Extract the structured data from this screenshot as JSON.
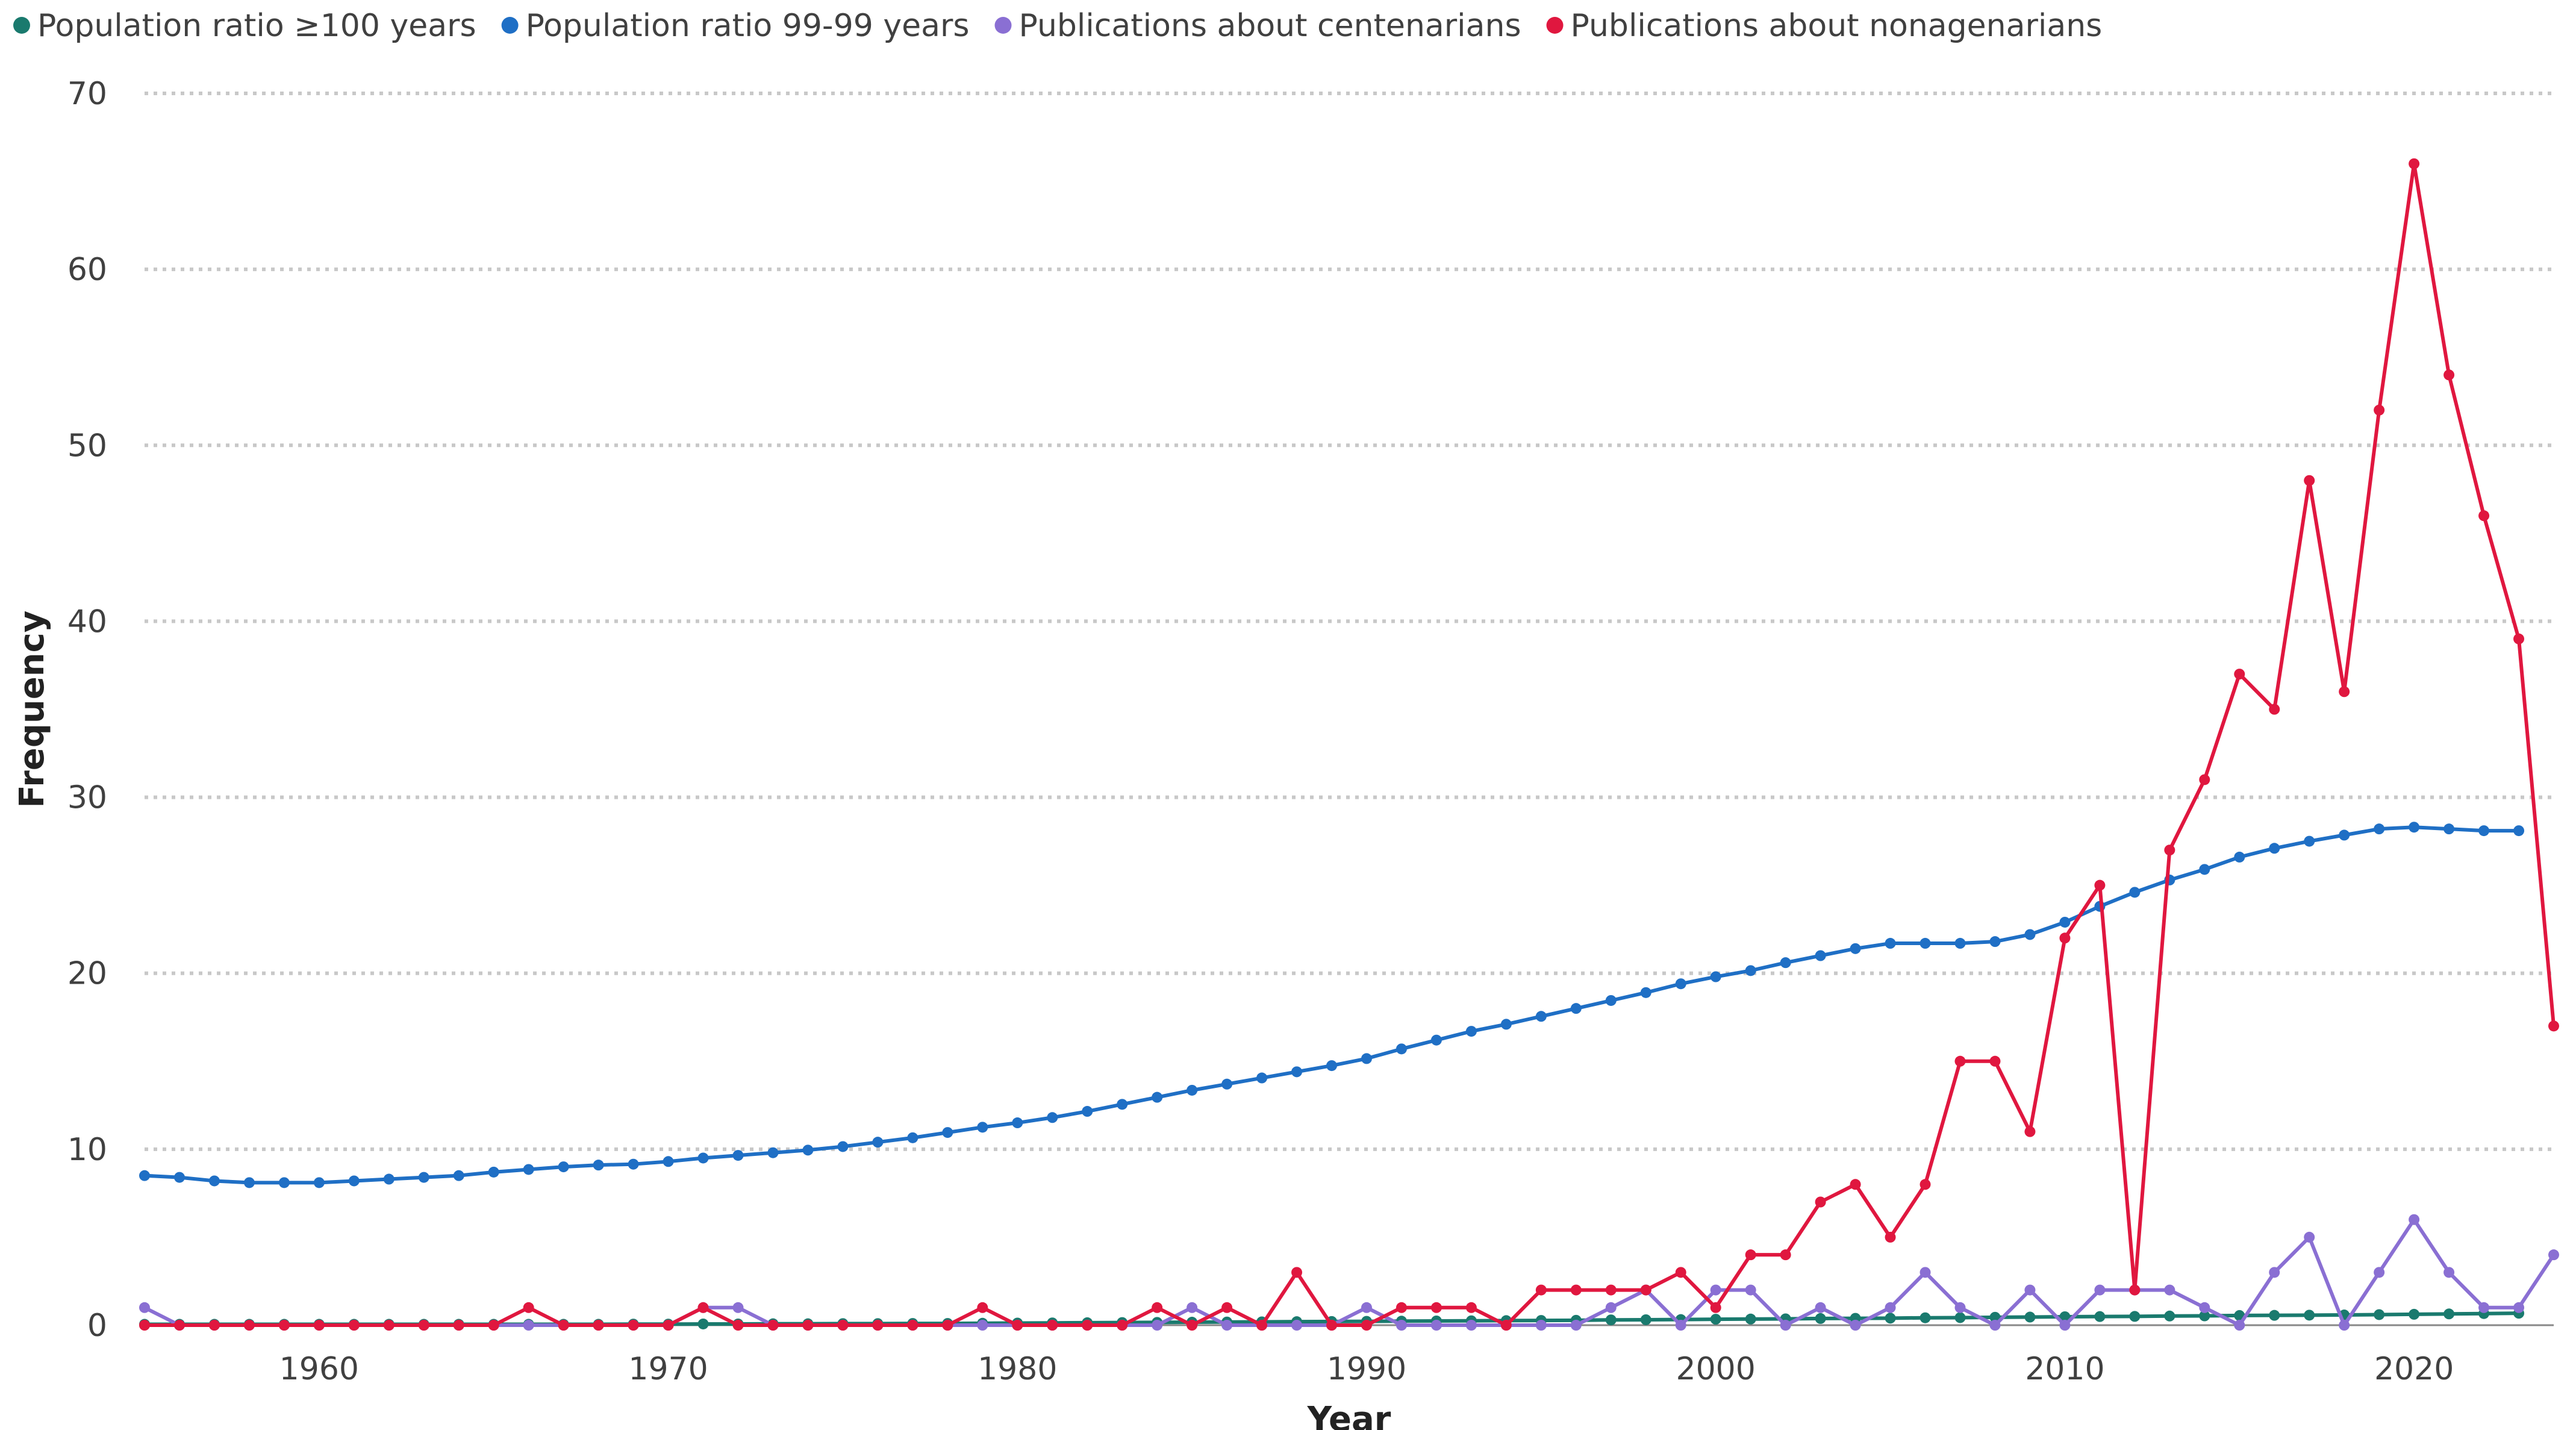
{
  "chart_data": {
    "type": "line",
    "title": "",
    "xlabel": "Year",
    "ylabel": "Frequency",
    "xlim": [
      1955,
      2024
    ],
    "ylim": [
      0,
      70
    ],
    "yticks": [
      0,
      10,
      20,
      30,
      40,
      50,
      60,
      70
    ],
    "xticks": [
      1960,
      1970,
      1980,
      1990,
      2000,
      2010,
      2020
    ],
    "grid": true,
    "legend_position": "top-left",
    "series": [
      {
        "name": "Population ratio ≥100 years",
        "color": "#1a7a6e",
        "x": [
          1955,
          1956,
          1957,
          1958,
          1959,
          1960,
          1961,
          1962,
          1963,
          1964,
          1965,
          1966,
          1967,
          1968,
          1969,
          1970,
          1971,
          1972,
          1973,
          1974,
          1975,
          1976,
          1977,
          1978,
          1979,
          1980,
          1981,
          1982,
          1983,
          1984,
          1985,
          1986,
          1987,
          1988,
          1989,
          1990,
          1991,
          1992,
          1993,
          1994,
          1995,
          1996,
          1997,
          1998,
          1999,
          2000,
          2001,
          2002,
          2003,
          2004,
          2005,
          2006,
          2007,
          2008,
          2009,
          2010,
          2011,
          2012,
          2013,
          2014,
          2015,
          2016,
          2017,
          2018,
          2019,
          2020,
          2021,
          2022,
          2023
        ],
        "values": [
          0.05,
          0.05,
          0.05,
          0.05,
          0.05,
          0.05,
          0.05,
          0.05,
          0.05,
          0.05,
          0.05,
          0.05,
          0.05,
          0.05,
          0.06,
          0.06,
          0.07,
          0.07,
          0.08,
          0.08,
          0.09,
          0.09,
          0.1,
          0.1,
          0.11,
          0.12,
          0.13,
          0.14,
          0.15,
          0.16,
          0.17,
          0.18,
          0.19,
          0.2,
          0.21,
          0.22,
          0.23,
          0.24,
          0.25,
          0.26,
          0.27,
          0.28,
          0.3,
          0.31,
          0.32,
          0.34,
          0.35,
          0.36,
          0.38,
          0.39,
          0.4,
          0.42,
          0.43,
          0.45,
          0.46,
          0.48,
          0.49,
          0.5,
          0.52,
          0.53,
          0.55,
          0.56,
          0.57,
          0.58,
          0.6,
          0.62,
          0.64,
          0.66,
          0.68
        ]
      },
      {
        "name": "Population ratio 99-99 years",
        "color": "#1f6fc5",
        "x": [
          1955,
          1956,
          1957,
          1958,
          1959,
          1960,
          1961,
          1962,
          1963,
          1964,
          1965,
          1966,
          1967,
          1968,
          1969,
          1970,
          1971,
          1972,
          1973,
          1974,
          1975,
          1976,
          1977,
          1978,
          1979,
          1980,
          1981,
          1982,
          1983,
          1984,
          1985,
          1986,
          1987,
          1988,
          1989,
          1990,
          1991,
          1992,
          1993,
          1994,
          1995,
          1996,
          1997,
          1998,
          1999,
          2000,
          2001,
          2002,
          2003,
          2004,
          2005,
          2006,
          2007,
          2008,
          2009,
          2010,
          2011,
          2012,
          2013,
          2014,
          2015,
          2016,
          2017,
          2018,
          2019,
          2020,
          2021,
          2022,
          2023
        ],
        "values": [
          8.5,
          8.4,
          8.2,
          8.1,
          8.1,
          8.1,
          8.2,
          8.3,
          8.4,
          8.5,
          8.7,
          8.85,
          9.0,
          9.1,
          9.15,
          9.3,
          9.5,
          9.65,
          9.8,
          9.95,
          10.15,
          10.4,
          10.65,
          10.95,
          11.25,
          11.5,
          11.8,
          12.15,
          12.55,
          12.95,
          13.35,
          13.7,
          14.05,
          14.4,
          14.75,
          15.15,
          15.7,
          16.2,
          16.7,
          17.1,
          17.55,
          18.0,
          18.45,
          18.9,
          19.4,
          19.8,
          20.15,
          20.6,
          21.0,
          21.4,
          21.7,
          21.7,
          21.7,
          21.8,
          22.2,
          22.9,
          23.8,
          24.6,
          25.3,
          25.9,
          26.6,
          27.1,
          27.5,
          27.85,
          28.2,
          28.3,
          28.2,
          28.1,
          28.1
        ]
      },
      {
        "name": "Publications about centenarians",
        "color": "#8a6fd3",
        "x": [
          1955,
          1956,
          1957,
          1958,
          1959,
          1960,
          1961,
          1962,
          1963,
          1964,
          1965,
          1966,
          1967,
          1968,
          1969,
          1970,
          1971,
          1972,
          1973,
          1974,
          1975,
          1976,
          1977,
          1978,
          1979,
          1980,
          1981,
          1982,
          1983,
          1984,
          1985,
          1986,
          1987,
          1988,
          1989,
          1990,
          1991,
          1992,
          1993,
          1994,
          1995,
          1996,
          1997,
          1998,
          1999,
          2000,
          2001,
          2002,
          2003,
          2004,
          2005,
          2006,
          2007,
          2008,
          2009,
          2010,
          2011,
          2012,
          2013,
          2014,
          2015,
          2016,
          2017,
          2018,
          2019,
          2020,
          2021,
          2022,
          2023,
          2024
        ],
        "values": [
          1,
          0,
          0,
          0,
          0,
          0,
          0,
          0,
          0,
          0,
          0,
          0,
          0,
          0,
          0,
          0,
          1,
          1,
          0,
          0,
          0,
          0,
          0,
          0,
          0,
          0,
          0,
          0,
          0,
          0,
          1,
          0,
          0,
          0,
          0,
          1,
          0,
          0,
          0,
          0,
          0,
          0,
          1,
          2,
          0,
          2,
          2,
          0,
          1,
          0,
          1,
          3,
          1,
          0,
          2,
          0,
          2,
          2,
          2,
          1,
          0,
          3,
          5,
          0,
          3,
          6,
          3,
          1,
          1,
          4
        ]
      },
      {
        "name": "Publications about nonagenarians",
        "color": "#e0173f",
        "x": [
          1955,
          1956,
          1957,
          1958,
          1959,
          1960,
          1961,
          1962,
          1963,
          1964,
          1965,
          1966,
          1967,
          1968,
          1969,
          1970,
          1971,
          1972,
          1973,
          1974,
          1975,
          1976,
          1977,
          1978,
          1979,
          1980,
          1981,
          1982,
          1983,
          1984,
          1985,
          1986,
          1987,
          1988,
          1989,
          1990,
          1991,
          1992,
          1993,
          1994,
          1995,
          1996,
          1997,
          1998,
          1999,
          2000,
          2001,
          2002,
          2003,
          2004,
          2005,
          2006,
          2007,
          2008,
          2009,
          2010,
          2011,
          2012,
          2013,
          2014,
          2015,
          2016,
          2017,
          2018,
          2019,
          2020,
          2021,
          2022,
          2023,
          2024
        ],
        "values": [
          0,
          0,
          0,
          0,
          0,
          0,
          0,
          0,
          0,
          0,
          0,
          1,
          0,
          0,
          0,
          0,
          1,
          0,
          0,
          0,
          0,
          0,
          0,
          0,
          1,
          0,
          0,
          0,
          0,
          1,
          0,
          1,
          0,
          3,
          0,
          0,
          1,
          1,
          1,
          0,
          2,
          2,
          2,
          2,
          3,
          1,
          4,
          4,
          7,
          8,
          5,
          8,
          15,
          15,
          11,
          22,
          25,
          2,
          27,
          31,
          37,
          35,
          48,
          36,
          52,
          66,
          54,
          46,
          39,
          17
        ]
      }
    ]
  }
}
